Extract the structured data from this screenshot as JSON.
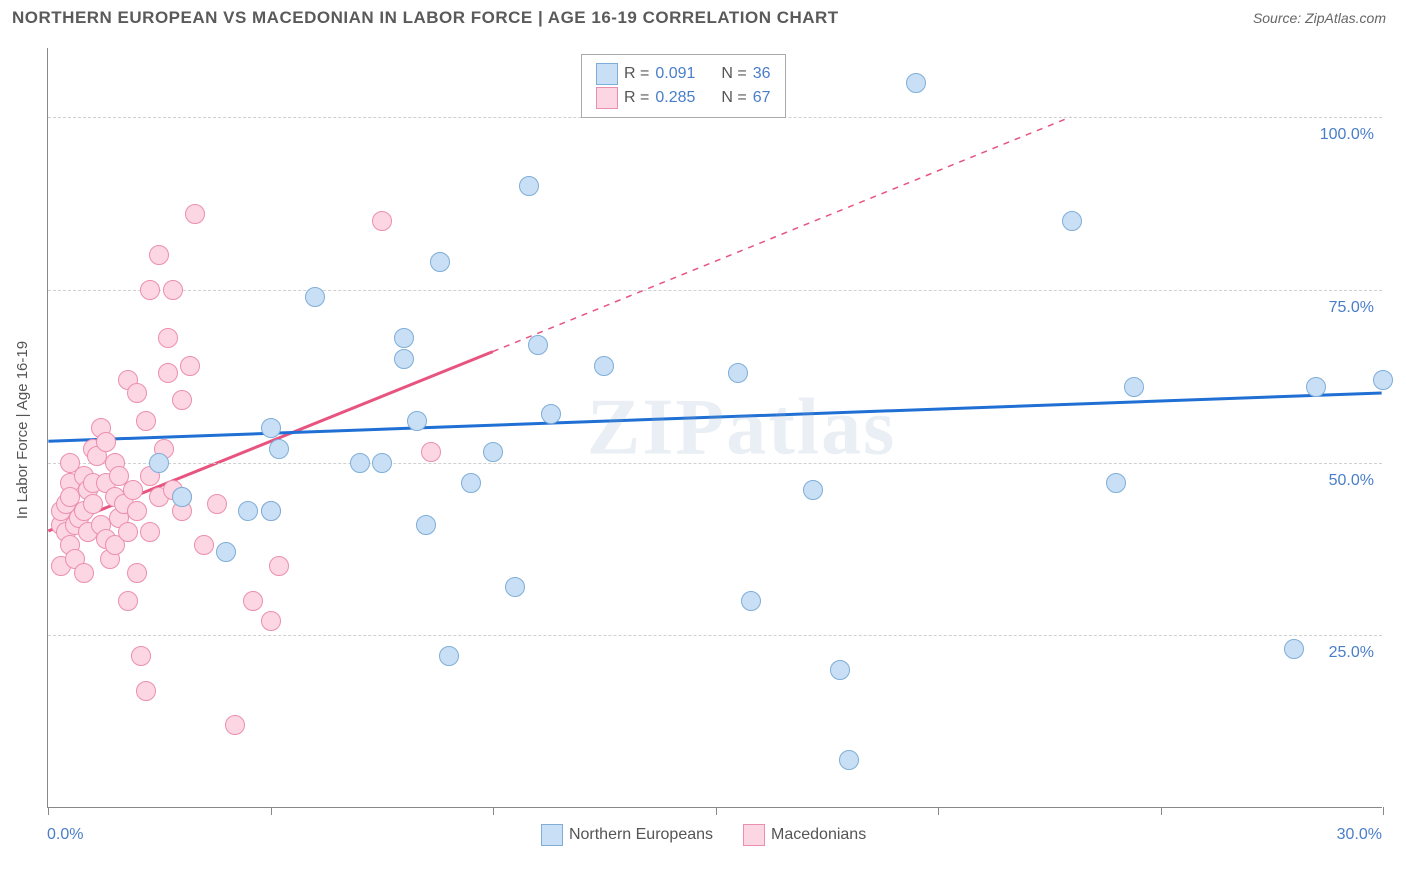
{
  "title": "NORTHERN EUROPEAN VS MACEDONIAN IN LABOR FORCE | AGE 16-19 CORRELATION CHART",
  "source": "Source: ZipAtlas.com",
  "ylabel": "In Labor Force | Age 16-19",
  "watermark": "ZIPatlas",
  "chart": {
    "type": "scatter",
    "xlim": [
      0,
      30
    ],
    "ylim": [
      0,
      110
    ],
    "xticks": [
      0,
      5,
      10,
      15,
      20,
      25,
      30
    ],
    "xtick_labels": {
      "0": "0.0%",
      "30": "30.0%"
    },
    "yticks": [
      25,
      50,
      75,
      100
    ],
    "ytick_labels": [
      "25.0%",
      "50.0%",
      "75.0%",
      "100.0%"
    ],
    "grid_color": "#d0d0d0",
    "background": "#ffffff",
    "axis_color": "#888888",
    "point_radius": 10
  },
  "series": {
    "northern": {
      "label": "Northern Europeans",
      "fill": "#c9dff5",
      "stroke": "#7eaed8",
      "trend_color": "#1f6fd4",
      "trend": {
        "x1": 0,
        "y1": 53,
        "x2": 30,
        "y2": 60
      },
      "R": "0.091",
      "N": "36",
      "points": [
        [
          2.5,
          50
        ],
        [
          3,
          45
        ],
        [
          4,
          37
        ],
        [
          4.5,
          43
        ],
        [
          5,
          55
        ],
        [
          5.2,
          52
        ],
        [
          5,
          43
        ],
        [
          6,
          74
        ],
        [
          7,
          50
        ],
        [
          7.5,
          50
        ],
        [
          8,
          65
        ],
        [
          8,
          68
        ],
        [
          8.3,
          56
        ],
        [
          8.5,
          41
        ],
        [
          8.8,
          79
        ],
        [
          9,
          22
        ],
        [
          9.5,
          47
        ],
        [
          10,
          51.5
        ],
        [
          10.5,
          32
        ],
        [
          10.8,
          90
        ],
        [
          11,
          67
        ],
        [
          11.3,
          57
        ],
        [
          12.5,
          64
        ],
        [
          13,
          105
        ],
        [
          15.5,
          63
        ],
        [
          15.8,
          30
        ],
        [
          17.8,
          20
        ],
        [
          17.2,
          46
        ],
        [
          18,
          7
        ],
        [
          19.5,
          105
        ],
        [
          23,
          85
        ],
        [
          24,
          47
        ],
        [
          24.4,
          61
        ],
        [
          28.5,
          61
        ],
        [
          28,
          23
        ],
        [
          30,
          62
        ]
      ]
    },
    "macedonian": {
      "label": "Macedonians",
      "fill": "#fcd6e2",
      "stroke": "#ec8fae",
      "trend_color": "#e75480",
      "trend_solid": {
        "x1": 0,
        "y1": 40,
        "x2": 10,
        "y2": 66
      },
      "trend_dash": {
        "x1": 10,
        "y1": 66,
        "x2": 23,
        "y2": 100
      },
      "R": "0.285",
      "N": "67",
      "points": [
        [
          0.3,
          41
        ],
        [
          0.3,
          35
        ],
        [
          0.3,
          43
        ],
        [
          0.4,
          44
        ],
        [
          0.4,
          40
        ],
        [
          0.5,
          38
        ],
        [
          0.5,
          47
        ],
        [
          0.5,
          45
        ],
        [
          0.5,
          50
        ],
        [
          0.6,
          36
        ],
        [
          0.6,
          41
        ],
        [
          0.7,
          42
        ],
        [
          0.8,
          43
        ],
        [
          0.8,
          34
        ],
        [
          0.8,
          48
        ],
        [
          0.9,
          46
        ],
        [
          0.9,
          40
        ],
        [
          1,
          52
        ],
        [
          1,
          47
        ],
        [
          1,
          44
        ],
        [
          1.1,
          51
        ],
        [
          1.2,
          41
        ],
        [
          1.2,
          55
        ],
        [
          1.3,
          47
        ],
        [
          1.3,
          53
        ],
        [
          1.3,
          39
        ],
        [
          1.4,
          36
        ],
        [
          1.5,
          45
        ],
        [
          1.5,
          50
        ],
        [
          1.5,
          38
        ],
        [
          1.6,
          48
        ],
        [
          1.6,
          42
        ],
        [
          1.7,
          44
        ],
        [
          1.8,
          62
        ],
        [
          1.8,
          40
        ],
        [
          1.8,
          30
        ],
        [
          1.9,
          46
        ],
        [
          2,
          43
        ],
        [
          2,
          34
        ],
        [
          2,
          60
        ],
        [
          2.1,
          22
        ],
        [
          2.2,
          17
        ],
        [
          2.2,
          56
        ],
        [
          2.3,
          48
        ],
        [
          2.3,
          40
        ],
        [
          2.3,
          75
        ],
        [
          2.5,
          45
        ],
        [
          2.5,
          80
        ],
        [
          2.6,
          52
        ],
        [
          2.7,
          68
        ],
        [
          2.7,
          63
        ],
        [
          2.8,
          46
        ],
        [
          2.8,
          75
        ],
        [
          3,
          45
        ],
        [
          3,
          43
        ],
        [
          3,
          59
        ],
        [
          3.2,
          64
        ],
        [
          3.3,
          86
        ],
        [
          3.5,
          38
        ],
        [
          3.8,
          44
        ],
        [
          4.2,
          12
        ],
        [
          4.6,
          30
        ],
        [
          5,
          27
        ],
        [
          5,
          43
        ],
        [
          5.2,
          35
        ],
        [
          8.6,
          51.5
        ],
        [
          7.5,
          85
        ]
      ]
    }
  },
  "legend_top": {
    "R_label": "R =",
    "N_label": "N ="
  }
}
